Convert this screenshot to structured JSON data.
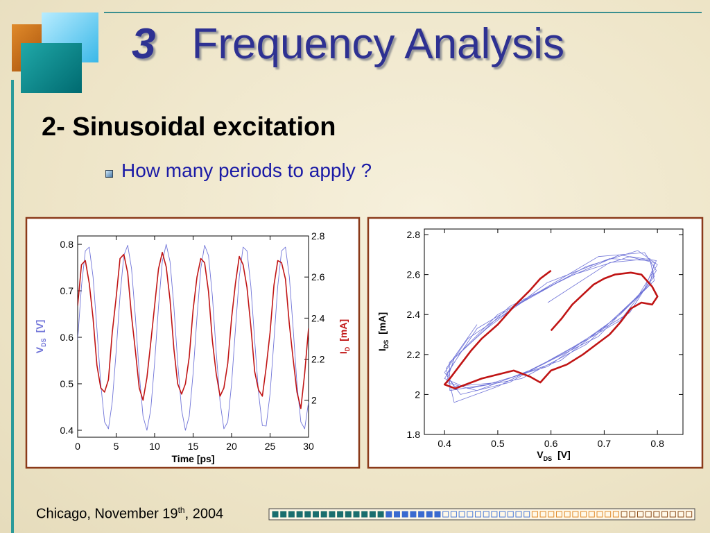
{
  "slide": {
    "number": "3",
    "title": "Frequency Analysis",
    "subtitle": "2- Sinusoidal excitation",
    "bullet": "How many periods to apply ?"
  },
  "footer": {
    "text": "Chicago, November 19",
    "sup": "th",
    "tail": ", 2004"
  },
  "chart_data": [
    {
      "type": "line",
      "x_label": "Time   [ps]",
      "y_label": {
        "main": "V",
        "sub": "DS",
        "unit": "[V]"
      },
      "y2_label": {
        "main": "I",
        "sub": "D",
        "unit": "[mA]"
      },
      "x": [
        0,
        0.5,
        1,
        1.5,
        2,
        2.5,
        3,
        3.5,
        4,
        4.5,
        5,
        5.5,
        6,
        6.5,
        7,
        7.5,
        8,
        8.5,
        9,
        9.5,
        10,
        10.5,
        11,
        11.5,
        12,
        12.5,
        13,
        13.5,
        14,
        14.5,
        15,
        15.5,
        16,
        16.5,
        17,
        17.5,
        18,
        18.5,
        19,
        19.5,
        20,
        20.5,
        21,
        21.5,
        22,
        22.5,
        23,
        23.5,
        24,
        24.5,
        25,
        25.5,
        26,
        26.5,
        27,
        27.5,
        28,
        28.5,
        29,
        29.5,
        30
      ],
      "xlim": [
        0,
        30
      ],
      "xticks": [
        0,
        5,
        10,
        15,
        20,
        25,
        30
      ],
      "ylim": [
        0.385,
        0.818
      ],
      "yticks": [
        0.4,
        0.5,
        0.6,
        0.7,
        0.8
      ],
      "y2lim": [
        1.82,
        2.8
      ],
      "y2ticks": [
        2,
        2.2,
        2.4,
        2.6,
        2.8
      ],
      "series": [
        {
          "color": "#7074d8",
          "values": [
            0.594,
            0.71,
            0.786,
            0.794,
            0.73,
            0.618,
            0.5,
            0.418,
            0.403,
            0.461,
            0.569,
            0.689,
            0.776,
            0.798,
            0.748,
            0.643,
            0.522,
            0.43,
            0.4,
            0.444,
            0.545,
            0.666,
            0.763,
            0.8,
            0.763,
            0.666,
            0.545,
            0.444,
            0.4,
            0.43,
            0.522,
            0.643,
            0.748,
            0.798,
            0.776,
            0.689,
            0.569,
            0.461,
            0.403,
            0.418,
            0.5,
            0.618,
            0.73,
            0.794,
            0.786,
            0.71,
            0.594,
            0.48,
            0.41,
            0.409,
            0.479,
            0.593,
            0.71,
            0.786,
            0.794,
            0.73,
            0.619,
            0.5,
            0.418,
            0.403,
            0.461
          ]
        },
        {
          "color": "#c01414",
          "axis": "y2",
          "values": [
            2.46,
            2.66,
            2.68,
            2.57,
            2.4,
            2.17,
            2.06,
            2.04,
            2.1,
            2.33,
            2.5,
            2.69,
            2.71,
            2.62,
            2.41,
            2.24,
            2.06,
            2.0,
            2.11,
            2.28,
            2.46,
            2.64,
            2.72,
            2.65,
            2.49,
            2.25,
            2.08,
            2.03,
            2.08,
            2.21,
            2.44,
            2.6,
            2.69,
            2.67,
            2.53,
            2.29,
            2.13,
            2.02,
            2.06,
            2.18,
            2.4,
            2.57,
            2.7,
            2.66,
            2.55,
            2.36,
            2.14,
            2.05,
            2.02,
            2.16,
            2.33,
            2.56,
            2.68,
            2.67,
            2.59,
            2.37,
            2.2,
            2.04,
            1.96,
            2.13,
            2.35
          ]
        }
      ]
    },
    {
      "type": "xy-line",
      "x_label": {
        "main": "V",
        "sub": "DS",
        "unit": "[V]"
      },
      "y_label": {
        "main": "I",
        "sub": "DS",
        "unit": "[mA]"
      },
      "xlim": [
        0.362,
        0.848
      ],
      "xticks": [
        0.4,
        0.5,
        0.6,
        0.7,
        0.8
      ],
      "ylim": [
        1.8,
        2.828
      ],
      "yticks": [
        1.8,
        2,
        2.2,
        2.4,
        2.6,
        2.8
      ],
      "series": [
        {
          "color": "#7074d8",
          "width": 0.8,
          "x": [
            0.594,
            0.71,
            0.786,
            0.794,
            0.73,
            0.618,
            0.5,
            0.418,
            0.403,
            0.461,
            0.569,
            0.689,
            0.776,
            0.798,
            0.748,
            0.643,
            0.522,
            0.43,
            0.4,
            0.444,
            0.545,
            0.666,
            0.763,
            0.8,
            0.763,
            0.666,
            0.545,
            0.444,
            0.4,
            0.43,
            0.522,
            0.643,
            0.748,
            0.798,
            0.776,
            0.689,
            0.569,
            0.461,
            0.403,
            0.418,
            0.5,
            0.618,
            0.73,
            0.794,
            0.786,
            0.71,
            0.594,
            0.48,
            0.41,
            0.409,
            0.479,
            0.593,
            0.71,
            0.786,
            0.794,
            0.73,
            0.619,
            0.5,
            0.418,
            0.403,
            0.461
          ],
          "y": [
            2.46,
            2.66,
            2.68,
            2.57,
            2.4,
            2.17,
            2.06,
            2.04,
            2.1,
            2.33,
            2.5,
            2.69,
            2.71,
            2.62,
            2.41,
            2.24,
            2.06,
            2.0,
            2.11,
            2.28,
            2.46,
            2.64,
            2.72,
            2.65,
            2.49,
            2.25,
            2.08,
            2.03,
            2.08,
            2.21,
            2.44,
            2.6,
            2.69,
            2.67,
            2.53,
            2.29,
            2.13,
            2.02,
            2.06,
            2.18,
            2.4,
            2.57,
            2.7,
            2.66,
            2.55,
            2.36,
            2.14,
            2.05,
            2.02,
            2.16,
            2.33,
            2.56,
            2.68,
            2.67,
            2.59,
            2.37,
            2.2,
            2.04,
            1.96,
            2.13,
            2.35
          ]
        },
        {
          "color": "#c01414",
          "width": 2.6,
          "x": [
            0.6,
            0.62,
            0.64,
            0.66,
            0.68,
            0.7,
            0.72,
            0.75,
            0.77,
            0.79,
            0.8,
            0.79,
            0.77,
            0.75,
            0.73,
            0.71,
            0.69,
            0.66,
            0.63,
            0.6,
            0.58,
            0.56,
            0.53,
            0.5,
            0.47,
            0.44,
            0.42,
            0.4,
            0.41,
            0.43,
            0.45,
            0.47,
            0.5,
            0.53,
            0.56,
            0.58,
            0.6
          ],
          "y": [
            2.32,
            2.38,
            2.45,
            2.5,
            2.55,
            2.58,
            2.6,
            2.61,
            2.6,
            2.54,
            2.49,
            2.45,
            2.46,
            2.43,
            2.36,
            2.3,
            2.26,
            2.2,
            2.15,
            2.12,
            2.06,
            2.09,
            2.12,
            2.1,
            2.08,
            2.05,
            2.03,
            2.05,
            2.08,
            2.15,
            2.22,
            2.28,
            2.35,
            2.44,
            2.52,
            2.58,
            2.62
          ]
        }
      ]
    }
  ]
}
